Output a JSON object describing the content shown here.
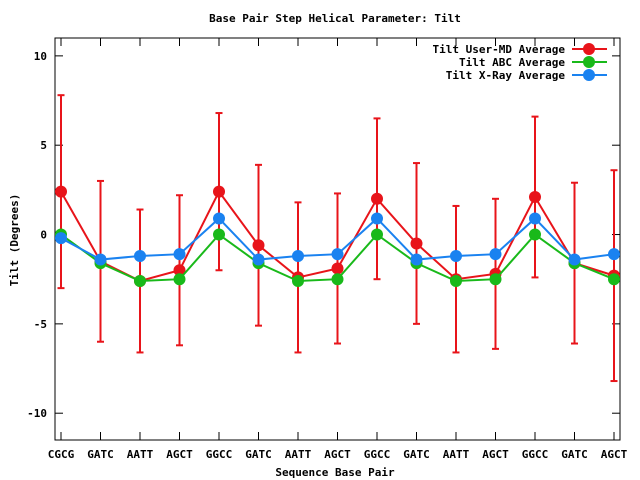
{
  "chart_data": {
    "type": "line",
    "title": "Base Pair Step Helical Parameter: Tilt",
    "xlabel": "Sequence Base Pair",
    "ylabel": "Tilt (Degrees)",
    "ylim": [
      -11.5,
      11
    ],
    "yticks": [
      -10,
      -5,
      0,
      5,
      10
    ],
    "grid": false,
    "legend_position": "top-right",
    "categories": [
      "CGCG",
      "GATC",
      "AATT",
      "AGCT",
      "GGCC",
      "GATC",
      "AATT",
      "AGCT",
      "GGCC",
      "GATC",
      "AATT",
      "AGCT",
      "GGCC",
      "GATC",
      "AGCT"
    ],
    "series": [
      {
        "name": "Tilt User-MD Average",
        "color": "#e8141a",
        "values": [
          2.4,
          -1.5,
          -2.6,
          -2.0,
          2.4,
          -0.6,
          -2.4,
          -1.9,
          2.0,
          -0.5,
          -2.5,
          -2.2,
          2.1,
          -1.6,
          -2.3
        ],
        "error": [
          5.4,
          4.5,
          4.0,
          4.2,
          4.4,
          4.5,
          4.2,
          4.2,
          4.5,
          4.5,
          4.1,
          4.2,
          4.5,
          4.5,
          5.9
        ]
      },
      {
        "name": "Tilt ABC Average",
        "color": "#19b91a",
        "values": [
          0.0,
          -1.6,
          -2.6,
          -2.5,
          0.0,
          -1.6,
          -2.6,
          -2.5,
          0.0,
          -1.6,
          -2.6,
          -2.5,
          0.0,
          -1.6,
          -2.5
        ]
      },
      {
        "name": "Tilt X-Ray Average",
        "color": "#1a82f0",
        "values": [
          -0.2,
          -1.4,
          -1.2,
          -1.1,
          0.9,
          -1.4,
          -1.2,
          -1.1,
          0.9,
          -1.4,
          -1.2,
          -1.1,
          0.9,
          -1.4,
          -1.1
        ]
      }
    ]
  }
}
